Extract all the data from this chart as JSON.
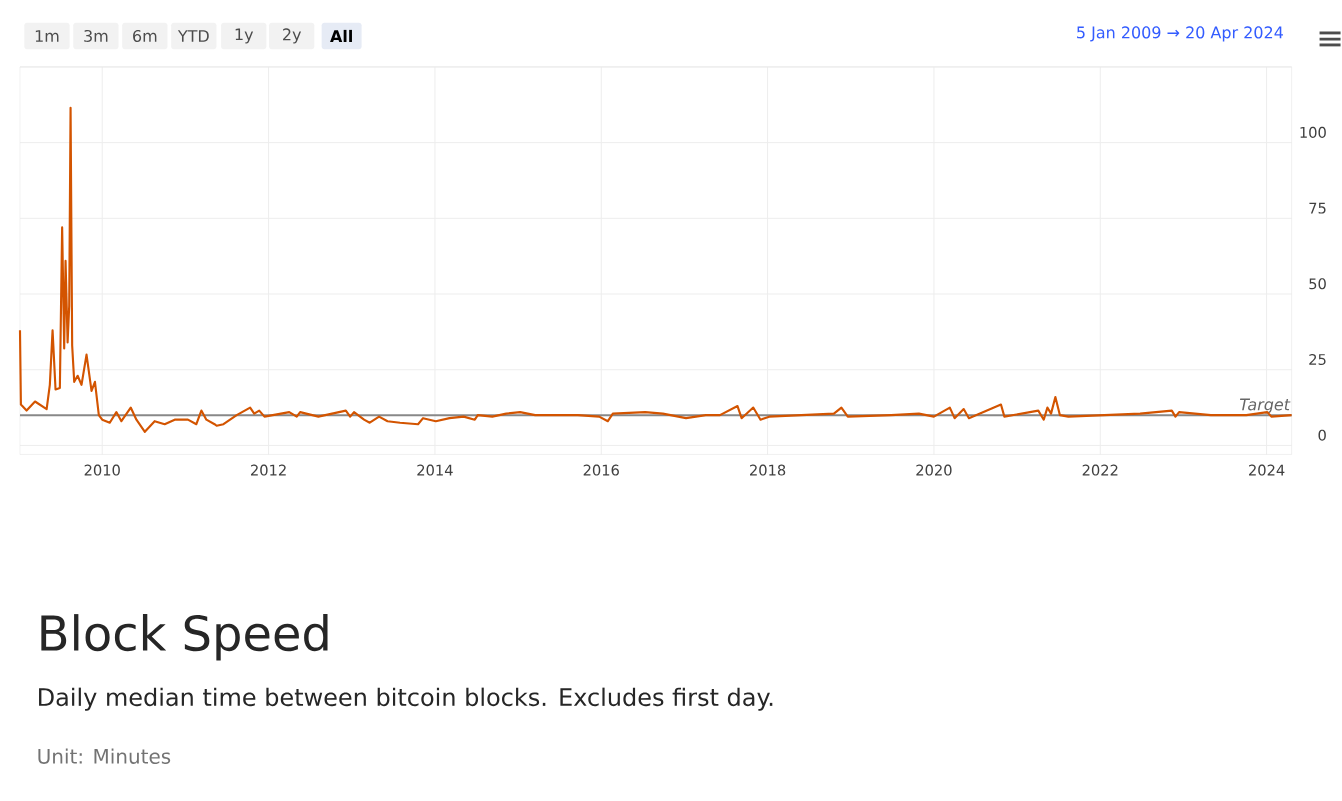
{
  "chart_data": {
    "type": "line",
    "title": "Block Speed",
    "subtitle": "Daily median time between bitcoin blocks. Excludes first day.",
    "annotations": [
      "1m",
      "3m",
      "6m",
      "YTD",
      "1y",
      "2y",
      "All",
      "5 Jan 2009 → 20 Apr 2024",
      "Unit:  Minutes"
    ],
    "xlim": [
      "2009-01-05",
      "2024-04-20"
    ],
    "xticks": [
      "2010",
      "2012",
      "2014",
      "2016",
      "2018",
      "2020",
      "2022",
      "2024"
    ],
    "ylim": [
      -3,
      125
    ],
    "yticks": [
      0,
      25,
      50,
      75,
      100,
      {
        "value": 125,
        "label": null
      }
    ],
    "grid": true,
    "marker": "none",
    "line_style": "solid",
    "ref_lines": [
      {
        "axis": "y",
        "value": 10,
        "label": "Target",
        "color": "#888888"
      }
    ],
    "series": [
      {
        "color": "#d35400",
        "x": [
          "2009-01-05",
          "2009-01-09",
          "2009-02-03",
          "2009-03-12",
          "2009-05-02",
          "2009-05-16",
          "2009-05-28",
          "2009-06-10",
          "2009-06-29",
          "2009-07-09",
          "2009-07-18",
          "2009-07-24",
          "2009-08-02",
          "2009-08-09",
          "2009-08-15",
          "2009-08-22",
          "2009-08-31",
          "2009-09-15",
          "2009-10-02",
          "2009-10-24",
          "2009-11-15",
          "2009-11-30",
          "2009-12-17",
          "2010-01-01",
          "2010-02-03",
          "2010-03-04",
          "2010-03-26",
          "2010-05-06",
          "2010-05-31",
          "2010-07-07",
          "2010-08-19",
          "2010-10-02",
          "2010-11-15",
          "2011-01-12",
          "2011-02-18",
          "2011-03-12",
          "2011-04-03",
          "2011-05-09",
          "2011-05-18",
          "2011-06-17",
          "2011-08-14",
          "2011-10-12",
          "2011-10-30",
          "2011-11-21",
          "2011-12-14",
          "2012-04-01",
          "2012-05-04",
          "2012-05-19",
          "2012-08-07",
          "2012-12-06",
          "2012-12-25",
          "2013-01-11",
          "2013-02-24",
          "2013-03-21",
          "2013-05-01",
          "2013-06-07",
          "2013-08-01",
          "2013-10-19",
          "2013-11-10",
          "2014-01-05",
          "2014-03-06",
          "2014-05-07",
          "2014-06-25",
          "2014-07-08",
          "2014-09-10",
          "2014-11-10",
          "2015-01-10",
          "2015-03-17",
          "2015-06-17",
          "2015-09-20",
          "2015-12-23",
          "2016-01-30",
          "2016-02-21",
          "2016-07-12",
          "2016-09-28",
          "2017-01-08",
          "2017-04-05",
          "2017-06-06",
          "2017-08-22",
          "2017-09-09",
          "2017-10-30",
          "2017-12-01",
          "2018-01-08",
          "2018-05-29",
          "2018-10-19",
          "2018-11-21",
          "2018-12-19",
          "2019-06-27",
          "2019-10-27",
          "2020-01-01",
          "2020-03-11",
          "2020-04-01",
          "2020-05-11",
          "2020-06-03",
          "2020-10-22",
          "2020-11-06",
          "2021-04-04",
          "2021-04-28",
          "2021-05-14",
          "2021-05-30",
          "2021-06-18",
          "2021-07-08",
          "2021-08-14",
          "2022-01-19",
          "2022-06-25",
          "2022-11-11",
          "2022-11-27",
          "2022-12-13",
          "2023-05-01",
          "2023-10-04",
          "2024-01-04",
          "2024-01-22",
          "2024-04-20"
        ],
        "values": [
          38,
          13.5,
          11.5,
          14.5,
          12,
          20,
          38,
          18.5,
          19,
          72,
          32,
          61,
          34,
          46,
          111.5,
          33,
          21,
          23,
          20,
          30,
          18,
          21,
          10,
          8.5,
          7.5,
          11,
          8,
          12.5,
          8.5,
          4.5,
          8,
          7,
          8.5,
          8.5,
          7,
          11.5,
          8.5,
          7,
          6.5,
          7,
          10,
          12.5,
          10.5,
          11.5,
          9.5,
          11,
          9.5,
          11,
          9.5,
          11.5,
          9.5,
          11,
          8.5,
          7.5,
          9.5,
          8,
          7.5,
          7,
          9,
          8,
          9,
          9.5,
          8.5,
          10,
          9.5,
          10.5,
          11,
          10,
          10,
          10,
          9.5,
          8,
          10.5,
          11,
          10.5,
          9,
          10,
          10,
          13,
          9,
          12.5,
          8.5,
          9.5,
          10,
          10.5,
          12.5,
          9.5,
          10,
          10.5,
          9.5,
          12.5,
          9,
          12,
          9,
          13.5,
          9.5,
          11.5,
          8.5,
          12.5,
          10.5,
          16,
          10,
          9.5,
          10,
          10.5,
          11.5,
          9.5,
          11,
          10,
          10,
          11,
          9.5,
          10
        ]
      }
    ]
  }
}
